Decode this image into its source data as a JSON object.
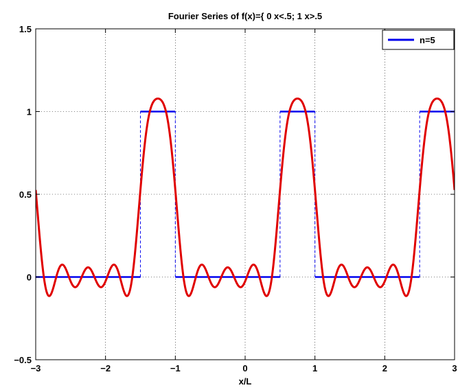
{
  "chart_data": {
    "type": "line",
    "title": "Fourier Series of f(x)={ 0 x<.5; 1 x>.5",
    "xlabel": "x/L",
    "ylabel": "",
    "xlim": [
      -3,
      3
    ],
    "ylim": [
      -0.5,
      1.5
    ],
    "xticks": [
      -3,
      -2,
      -1,
      0,
      1,
      2,
      3
    ],
    "xtick_labels": [
      "−3",
      "−2",
      "−1",
      "0",
      "1",
      "2",
      "3"
    ],
    "yticks": [
      -0.5,
      0,
      0.5,
      1,
      1.5
    ],
    "ytick_labels": [
      "−0.5",
      "0",
      "0.5",
      "1",
      "1.5"
    ],
    "grid": true,
    "legend_position": "top-right",
    "series": [
      {
        "name": "n=5",
        "style": "solid",
        "color": "#e00000",
        "role": "fourier_partial_sum",
        "terms": 5,
        "period": 2,
        "in_legend": true
      },
      {
        "style": "step",
        "color": "#0000ee",
        "role": "target_square_wave",
        "period": 2,
        "high_interval": [
          0.5,
          1.0
        ],
        "low_value": 0,
        "high_value": 1,
        "in_legend": false
      }
    ]
  }
}
